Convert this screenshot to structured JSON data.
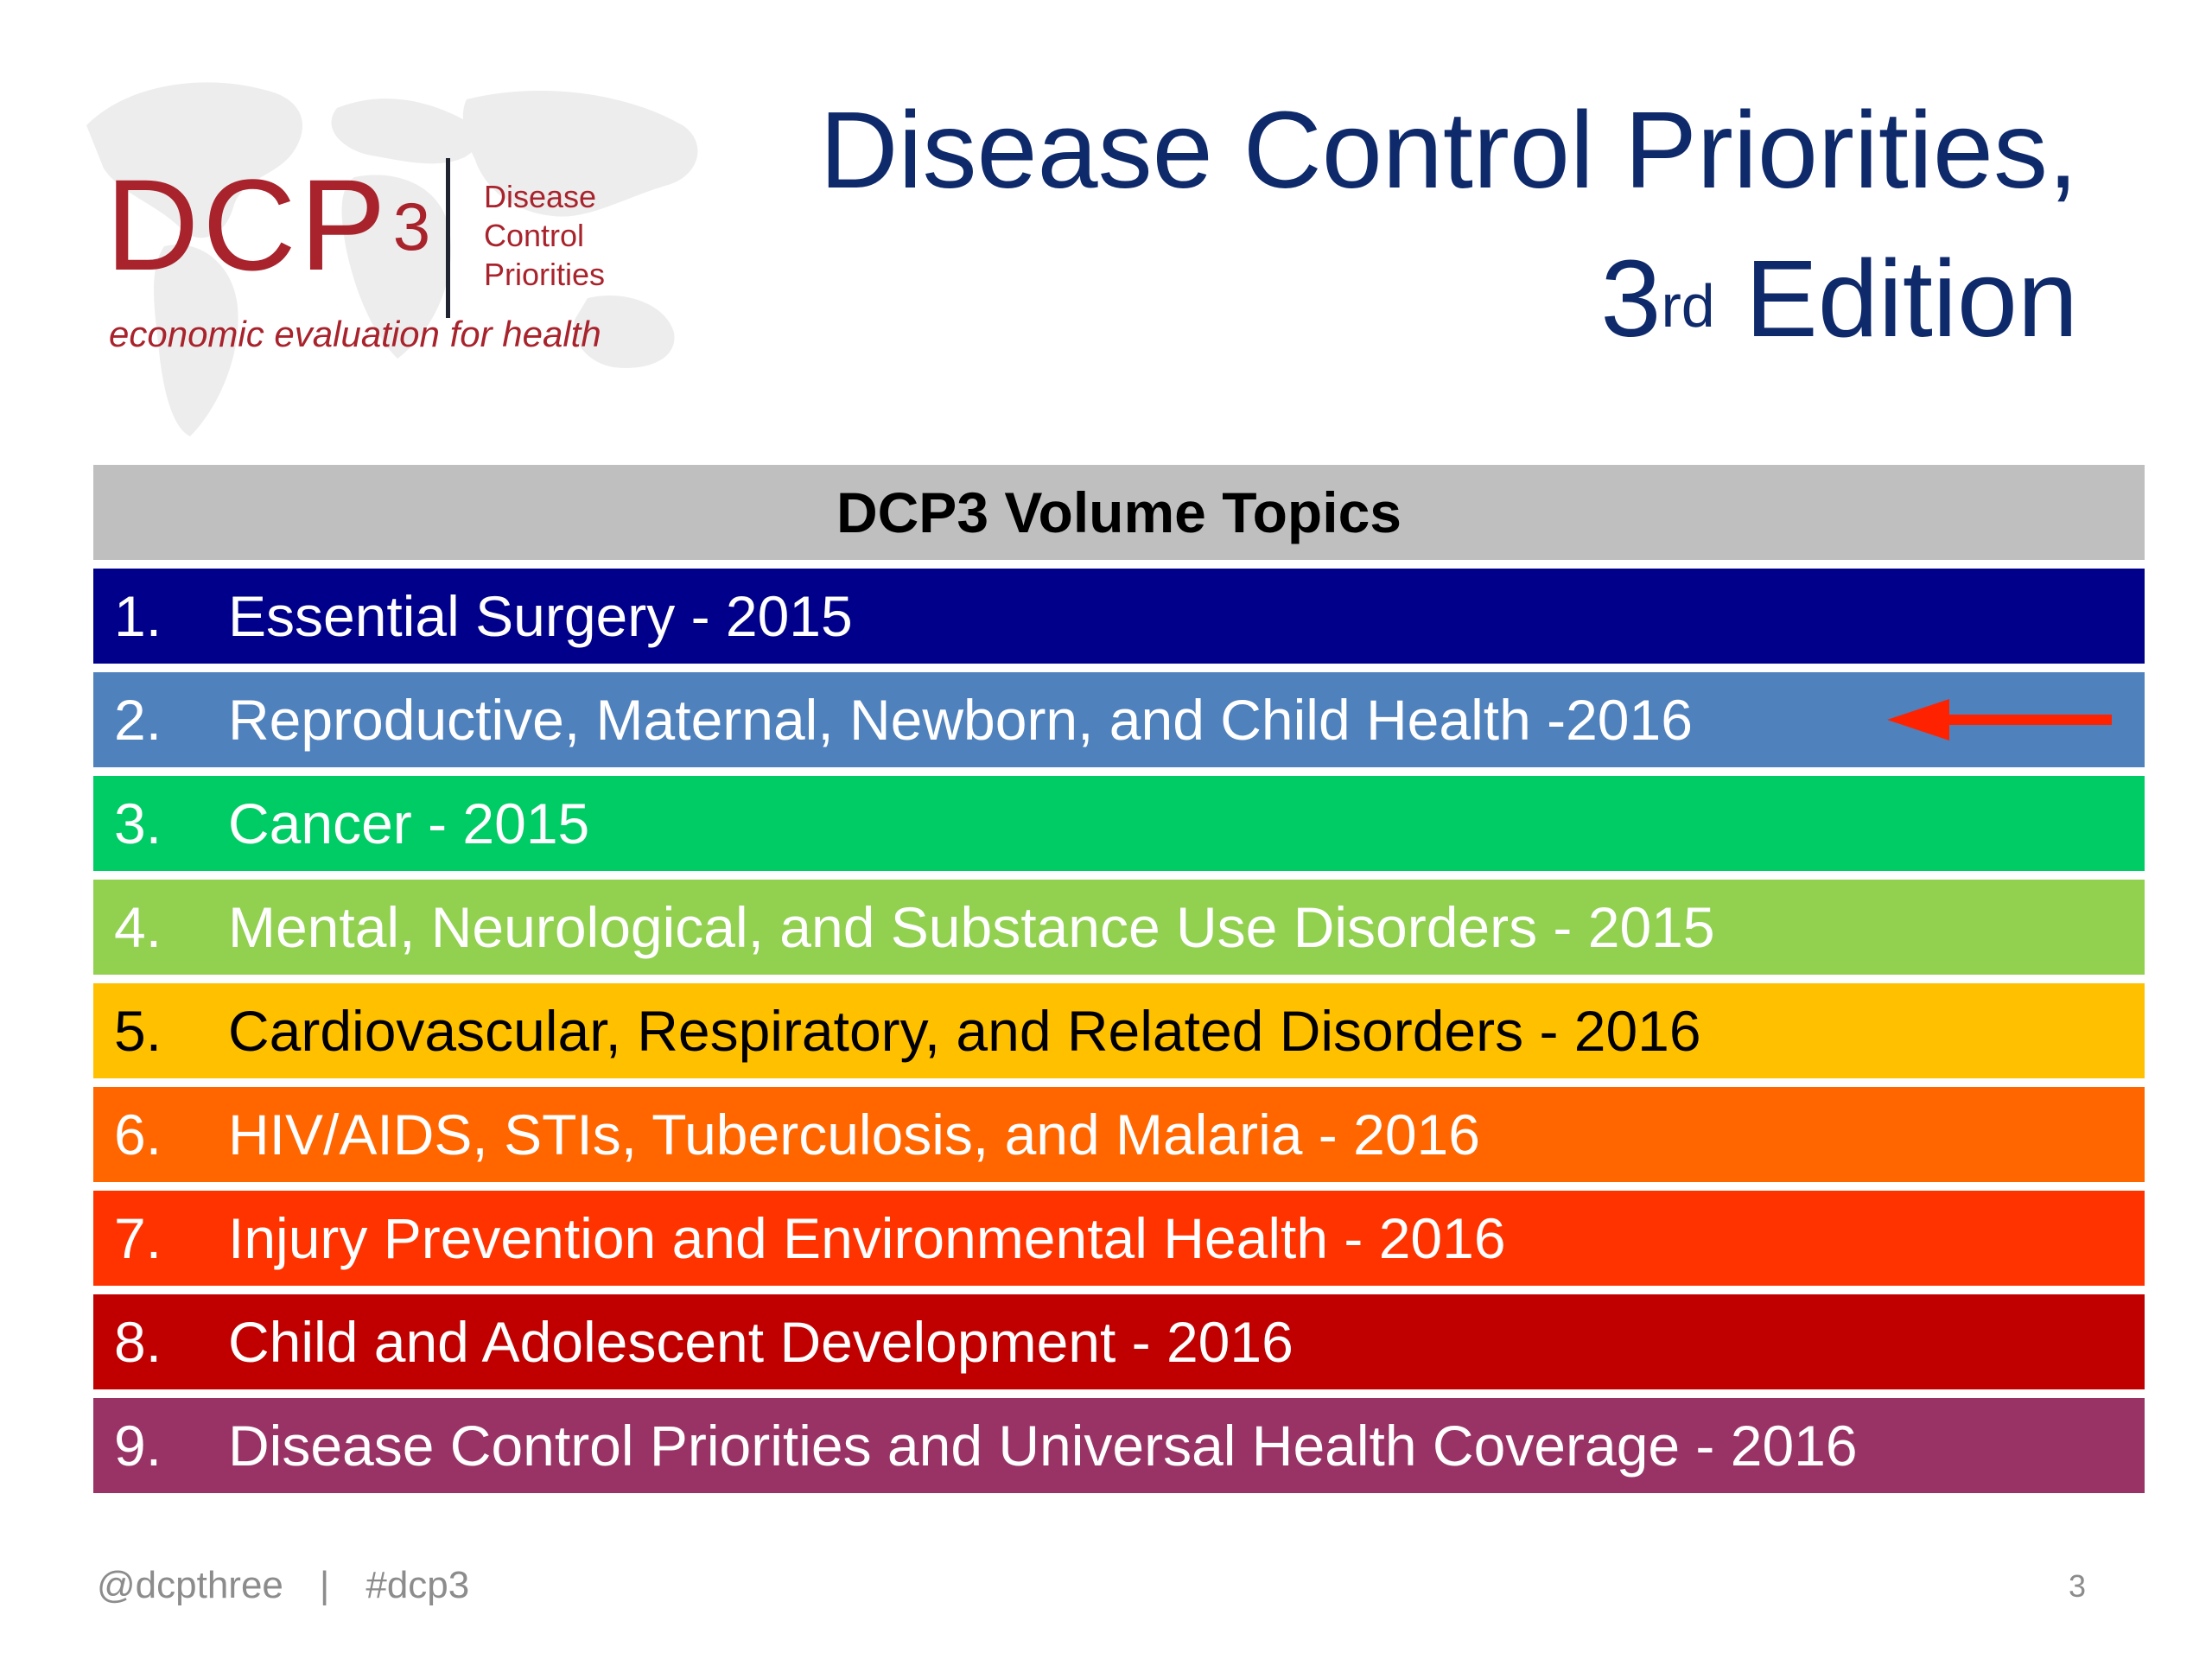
{
  "logo": {
    "mark": "DCP",
    "mark_superscript": "3",
    "name_lines": [
      "Disease",
      "Control",
      "Priorities"
    ],
    "tagline": "economic evaluation for health",
    "background_icon": "world-map-icon"
  },
  "title": {
    "line1": "Disease Control Priorities,",
    "line2_prefix": "3",
    "line2_superscript": "rd",
    "line2_suffix": " Edition"
  },
  "table": {
    "header": "DCP3 Volume Topics",
    "rows": [
      {
        "number": "1.",
        "label": "Essential Surgery - 2015",
        "bg": "#00008b",
        "fg": "#ffffff"
      },
      {
        "number": "2.",
        "label": "Reproductive, Maternal, Newborn, and Child Health -2016",
        "bg": "#4f81bd",
        "fg": "#ffffff",
        "highlight_icon": "arrow-left-icon",
        "highlight_color": "#ff2200"
      },
      {
        "number": "3.",
        "label": "Cancer - 2015",
        "bg": "#00cc66",
        "fg": "#ffffff"
      },
      {
        "number": "4.",
        "label": "Mental, Neurological, and Substance Use Disorders - 2015",
        "bg": "#92d050",
        "fg": "#ffffff"
      },
      {
        "number": "5.",
        "label": "Cardiovascular, Respiratory, and Related Disorders - 2016",
        "bg": "#ffc000",
        "fg": "#000000"
      },
      {
        "number": "6.",
        "label": "HIV/AIDS, STIs, Tuberculosis, and Malaria - 2016",
        "bg": "#ff6600",
        "fg": "#ffffff"
      },
      {
        "number": "7.",
        "label": "Injury Prevention and Environmental Health - 2016",
        "bg": "#ff3300",
        "fg": "#ffffff"
      },
      {
        "number": "8.",
        "label": "Child and Adolescent Development - 2016",
        "bg": "#c00000",
        "fg": "#ffffff"
      },
      {
        "number": "9.",
        "label": "Disease Control Priorities and Universal Health Coverage - 2016",
        "bg": "#993366",
        "fg": "#ffffff"
      }
    ]
  },
  "footer": {
    "handle": "@dcpthree",
    "separator": "|",
    "hashtag": "#dcp3",
    "page_number": "3"
  },
  "colors": {
    "brand_red": "#a8232c",
    "title_navy": "#0f2a6b",
    "header_gray": "#bfbfbf",
    "footer_gray": "#8c8c8c"
  }
}
